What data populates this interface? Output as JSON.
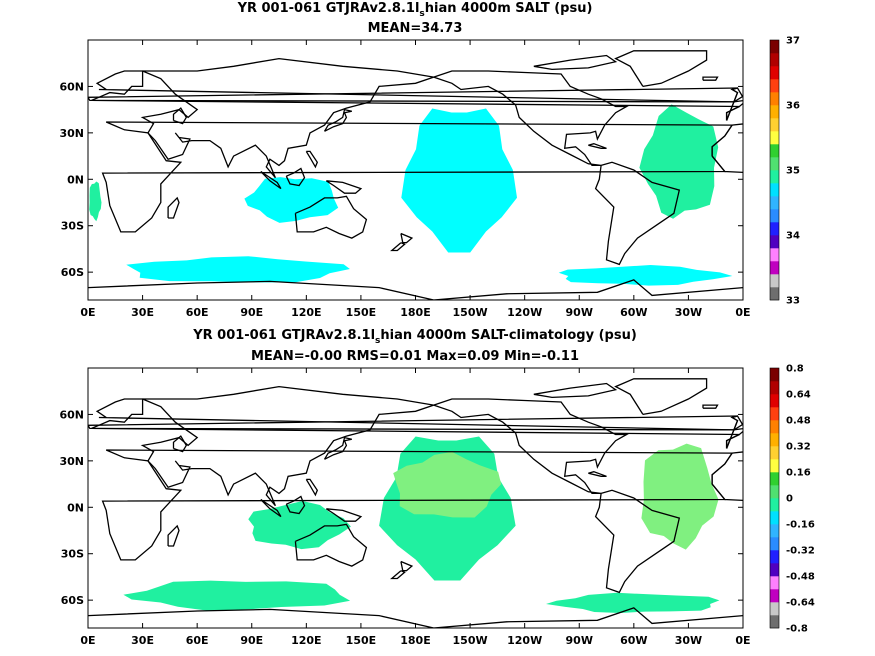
{
  "chart_data": [
    {
      "type": "heatmap",
      "title": "YR 001-061 GTJRAv2.8.1l",
      "title_subscript": "s",
      "title_rest": "hian 4000m SALT (psu)",
      "subtitle": "MEAN=34.73",
      "x_ticks": [
        "0E",
        "30E",
        "60E",
        "90E",
        "120E",
        "150E",
        "180E",
        "150W",
        "120W",
        "90W",
        "60W",
        "30W",
        "0E"
      ],
      "y_ticks": [
        "60N",
        "30N",
        "0N",
        "30S",
        "60S"
      ],
      "y_tick_values": [
        60,
        30,
        0,
        -30,
        -60
      ],
      "xlim": [
        0,
        360
      ],
      "ylim": [
        -78,
        90
      ],
      "colorbar": {
        "labels": [
          "37",
          "36",
          "35",
          "34",
          "33"
        ],
        "label_values": [
          37,
          36,
          35,
          34,
          33
        ],
        "range": [
          33,
          37
        ],
        "colors": [
          "#6e6e6e",
          "#c8c8c8",
          "#c000c0",
          "#ff80ff",
          "#5000c0",
          "#2020ff",
          "#2a8cff",
          "#30b4ff",
          "#00e0ff",
          "#20f0a0",
          "#50e070",
          "#30d030",
          "#ffff40",
          "#ffd030",
          "#ffb000",
          "#ff8000",
          "#ff4010",
          "#e00000",
          "#b00000",
          "#7a0000"
        ]
      },
      "patches": [
        {
          "value": 34.7,
          "color": "#00ffff",
          "lon": [
            168,
            240
          ],
          "lat": [
            -50,
            62
          ]
        },
        {
          "value": 34.7,
          "color": "#00ffff",
          "lon": [
            5,
            150
          ],
          "lat": [
            -68,
            -48
          ]
        },
        {
          "value": 34.7,
          "color": "#00ffff",
          "lon": [
            80,
            140
          ],
          "lat": [
            -30,
            5
          ]
        },
        {
          "value": 34.7,
          "color": "#00ffff",
          "lon": [
            245,
            355
          ],
          "lat": [
            -70,
            -55
          ]
        },
        {
          "value": 34.9,
          "color": "#20f0a0",
          "lon": [
            300,
            350
          ],
          "lat": [
            -35,
            50
          ]
        },
        {
          "value": 34.9,
          "color": "#20f0a0",
          "lon": [
            0,
            8
          ],
          "lat": [
            -30,
            0
          ]
        }
      ]
    },
    {
      "type": "heatmap",
      "title": "YR 001-061 GTJRAv2.8.1l",
      "title_subscript": "s",
      "title_rest": "hian 4000m SALT-climatology (psu)",
      "subtitle": "MEAN=-0.00   RMS=0.01   Max=0.09   Min=-0.11",
      "x_ticks": [
        "0E",
        "30E",
        "60E",
        "90E",
        "120E",
        "150E",
        "180E",
        "150W",
        "120W",
        "90W",
        "60W",
        "30W",
        "0E"
      ],
      "y_ticks": [
        "60N",
        "30N",
        "0N",
        "30S",
        "60S"
      ],
      "y_tick_values": [
        60,
        30,
        0,
        -30,
        -60
      ],
      "xlim": [
        0,
        360
      ],
      "ylim": [
        -78,
        90
      ],
      "colorbar": {
        "labels": [
          "0.8",
          "0.64",
          "0.48",
          "0.32",
          "0.16",
          "0",
          "-0.16",
          "-0.32",
          "-0.48",
          "-0.64",
          "-0.8"
        ],
        "label_values": [
          0.8,
          0.64,
          0.48,
          0.32,
          0.16,
          0,
          -0.16,
          -0.32,
          -0.48,
          -0.64,
          -0.8
        ],
        "range": [
          -0.8,
          0.8
        ],
        "colors": [
          "#6e6e6e",
          "#c8c8c8",
          "#c000c0",
          "#ff80ff",
          "#5000c0",
          "#2020ff",
          "#2a8cff",
          "#30b4ff",
          "#00e0ff",
          "#20f0a0",
          "#50e070",
          "#30d030",
          "#ffff40",
          "#ffd030",
          "#ffb000",
          "#ff8000",
          "#ff4010",
          "#e00000",
          "#b00000",
          "#7a0000"
        ]
      },
      "patches": [
        {
          "value": -0.02,
          "color": "#20f0a0",
          "lon": [
            155,
            240
          ],
          "lat": [
            -50,
            62
          ]
        },
        {
          "value": 0.02,
          "color": "#80f080",
          "lon": [
            160,
            230
          ],
          "lat": [
            -10,
            40
          ]
        },
        {
          "value": -0.02,
          "color": "#20f0a0",
          "lon": [
            5,
            150
          ],
          "lat": [
            -68,
            -45
          ]
        },
        {
          "value": -0.02,
          "color": "#20f0a0",
          "lon": [
            80,
            145
          ],
          "lat": [
            -30,
            5
          ]
        },
        {
          "value": -0.02,
          "color": "#20f0a0",
          "lon": [
            245,
            355
          ],
          "lat": [
            -70,
            -55
          ]
        },
        {
          "value": 0.02,
          "color": "#80f080",
          "lon": [
            300,
            350
          ],
          "lat": [
            -35,
            45
          ]
        }
      ]
    }
  ]
}
